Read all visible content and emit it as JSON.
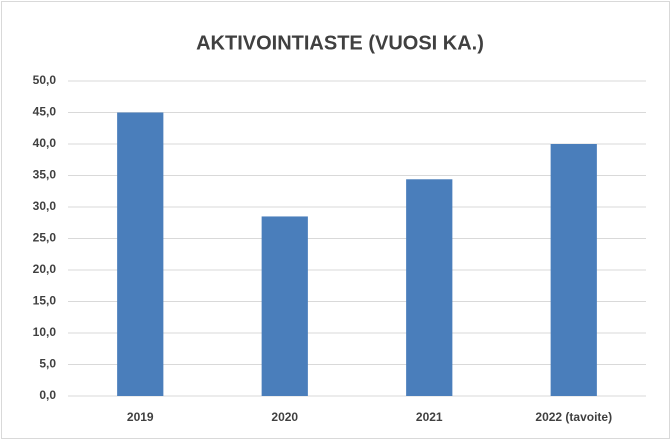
{
  "chart_data": {
    "type": "bar",
    "title": "AKTIVOINTIASTE (VUOSI KA.)",
    "categories": [
      "2019",
      "2020",
      "2021",
      "2022 (tavoite)"
    ],
    "values": [
      45.0,
      28.5,
      34.4,
      40.0
    ],
    "color": "#4a7ebb",
    "ylim": [
      0,
      50
    ],
    "yticks": [
      {
        "value": 0,
        "label": "0,0"
      },
      {
        "value": 5,
        "label": "5,0"
      },
      {
        "value": 10,
        "label": "10,0"
      },
      {
        "value": 15,
        "label": "15,0"
      },
      {
        "value": 20,
        "label": "20,0"
      },
      {
        "value": 25,
        "label": "25,0"
      },
      {
        "value": 30,
        "label": "30,0"
      },
      {
        "value": 35,
        "label": "35,0"
      },
      {
        "value": 40,
        "label": "40,0"
      },
      {
        "value": 45,
        "label": "45,0"
      },
      {
        "value": 50,
        "label": "50,0"
      }
    ],
    "grid": true
  }
}
